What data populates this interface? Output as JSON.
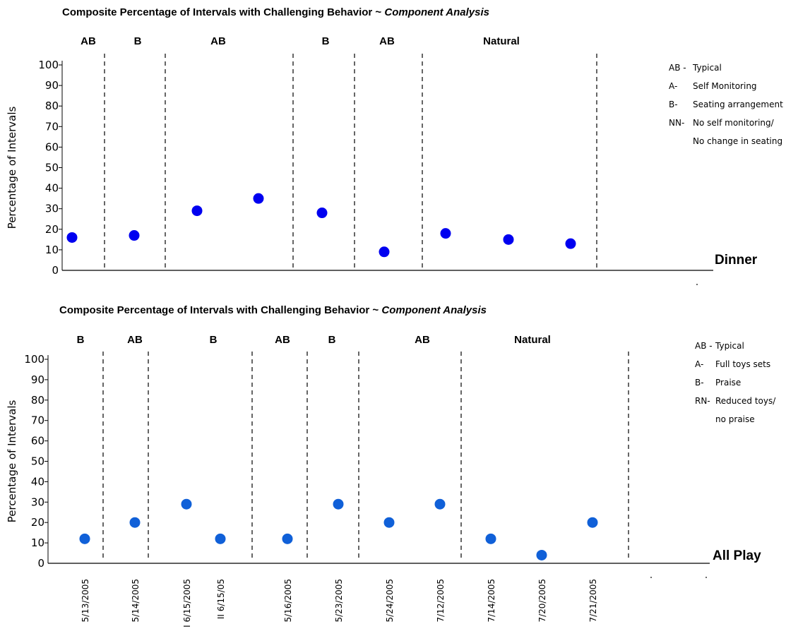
{
  "chart_data": [
    {
      "type": "scatter",
      "title": "Composite Percentage of Intervals with Challenging Behavior ~",
      "title_italic": "Component Analysis",
      "ylabel": "Percentage of Intervals",
      "ylim": [
        0,
        100
      ],
      "yticks": [
        "0",
        "10",
        "20",
        "30",
        "40",
        "50",
        "60",
        "70",
        "80",
        "90",
        "100"
      ],
      "corner_label": "Dinner",
      "phases": [
        "AB",
        "B",
        "AB",
        "B",
        "AB",
        "Natural"
      ],
      "x": [
        1,
        2,
        3,
        4,
        5,
        6,
        7,
        8,
        9
      ],
      "values": [
        16,
        17,
        29,
        35,
        28,
        9,
        18,
        15,
        13
      ],
      "point_color": "#0000f0",
      "legend": [
        {
          "key": "AB -",
          "text": "Typical"
        },
        {
          "key": "A-",
          "text": "Self Monitoring"
        },
        {
          "key": "B-",
          "text": "Seating arrangement"
        },
        {
          "key": "NN-",
          "text": "No self monitoring/"
        },
        {
          "key": "",
          "text": "No change in seating"
        }
      ]
    },
    {
      "type": "scatter",
      "title": "Composite Percentage of Intervals with Challenging Behavior ~",
      "title_italic": "Component Analysis",
      "ylabel": "Percentage of Intervals",
      "ylim": [
        0,
        100
      ],
      "yticks": [
        "0",
        "10",
        "20",
        "30",
        "40",
        "50",
        "60",
        "70",
        "80",
        "90",
        "100"
      ],
      "corner_label": "All Play",
      "phases": [
        "B",
        "AB",
        "B",
        "AB",
        "B",
        "AB",
        "Natural"
      ],
      "categories": [
        "5/13/2005",
        "5/14/2005",
        "I 6/15/2005",
        "II 6/15/05",
        "5/16/2005",
        "5/23/2005",
        "5/24/2005",
        "7/12/2005",
        "7/14/2005",
        "7/20/2005",
        "7/21/2005"
      ],
      "values": [
        12,
        20,
        29,
        12,
        12,
        29,
        20,
        29,
        12,
        4,
        20
      ],
      "point_color": "#1060d8",
      "legend": [
        {
          "key": "AB -",
          "text": "Typical"
        },
        {
          "key": "A-",
          "text": "Full toys sets"
        },
        {
          "key": "B-",
          "text": "Praise"
        },
        {
          "key": "RN-",
          "text": "Reduced toys/"
        },
        {
          "key": "",
          "text": "no praise"
        }
      ]
    }
  ]
}
